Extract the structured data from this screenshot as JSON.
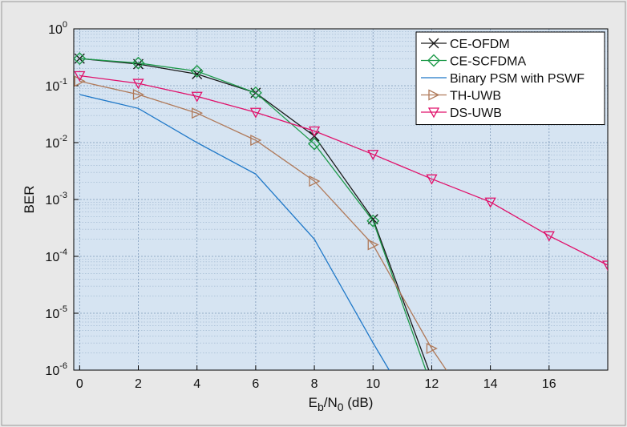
{
  "chart_data": {
    "type": "line",
    "xlabel": {
      "base": "E",
      "sub1": "b",
      "mid": "/N",
      "sub2": "0",
      "tail": " (dB)"
    },
    "ylabel": "BER",
    "xlim": [
      -0.2,
      18
    ],
    "ylim": [
      1e-06,
      1
    ],
    "yscale": "log",
    "grid": true,
    "legend_position": "top-right",
    "x_ticks": [
      0,
      2,
      4,
      6,
      8,
      10,
      12,
      14,
      16
    ],
    "y_ticks": [
      {
        "value": 1,
        "base": "10",
        "exp": "0"
      },
      {
        "value": 0.1,
        "base": "10",
        "exp": "-1"
      },
      {
        "value": 0.01,
        "base": "10",
        "exp": "-2"
      },
      {
        "value": 0.001,
        "base": "10",
        "exp": "-3"
      },
      {
        "value": 0.0001,
        "base": "10",
        "exp": "-4"
      },
      {
        "value": 1e-05,
        "base": "10",
        "exp": "-5"
      },
      {
        "value": 1e-06,
        "base": "10",
        "exp": "-6"
      }
    ],
    "series": [
      {
        "name": "CE-OFDM",
        "color": "#1a1a1a",
        "marker": "x",
        "x": [
          0,
          2,
          4,
          6,
          8,
          10,
          11.9
        ],
        "y": [
          0.3,
          0.24,
          0.16,
          0.075,
          0.013,
          0.00045,
          1e-06
        ]
      },
      {
        "name": "CE-SCFDMA",
        "color": "#1e9a4a",
        "marker": "diamond",
        "x": [
          0,
          2,
          4,
          6,
          8,
          10,
          11.8
        ],
        "y": [
          0.3,
          0.25,
          0.18,
          0.075,
          0.0095,
          0.00042,
          1e-06
        ]
      },
      {
        "name": "Binary PSM with PSWF",
        "color": "#1f78c8",
        "marker": "none",
        "x": [
          0,
          2,
          4,
          6,
          8,
          10,
          10.55
        ],
        "y": [
          0.07,
          0.04,
          0.01,
          0.0028,
          0.0002,
          3e-06,
          1e-06
        ]
      },
      {
        "name": "TH-UWB",
        "color": "#b07a5a",
        "marker": "triangle-right",
        "x": [
          0,
          2,
          4,
          6,
          8,
          10,
          12,
          12.5
        ],
        "y": [
          0.12,
          0.07,
          0.033,
          0.011,
          0.0021,
          0.00016,
          2.4e-06,
          1e-06
        ]
      },
      {
        "name": "DS-UWB",
        "color": "#e0106a",
        "marker": "triangle-down",
        "x": [
          0,
          2,
          4,
          6,
          8,
          10,
          12,
          14,
          16,
          18
        ],
        "y": [
          0.15,
          0.11,
          0.065,
          0.034,
          0.016,
          0.0062,
          0.0023,
          0.0009,
          0.00023,
          7e-05
        ]
      }
    ]
  }
}
